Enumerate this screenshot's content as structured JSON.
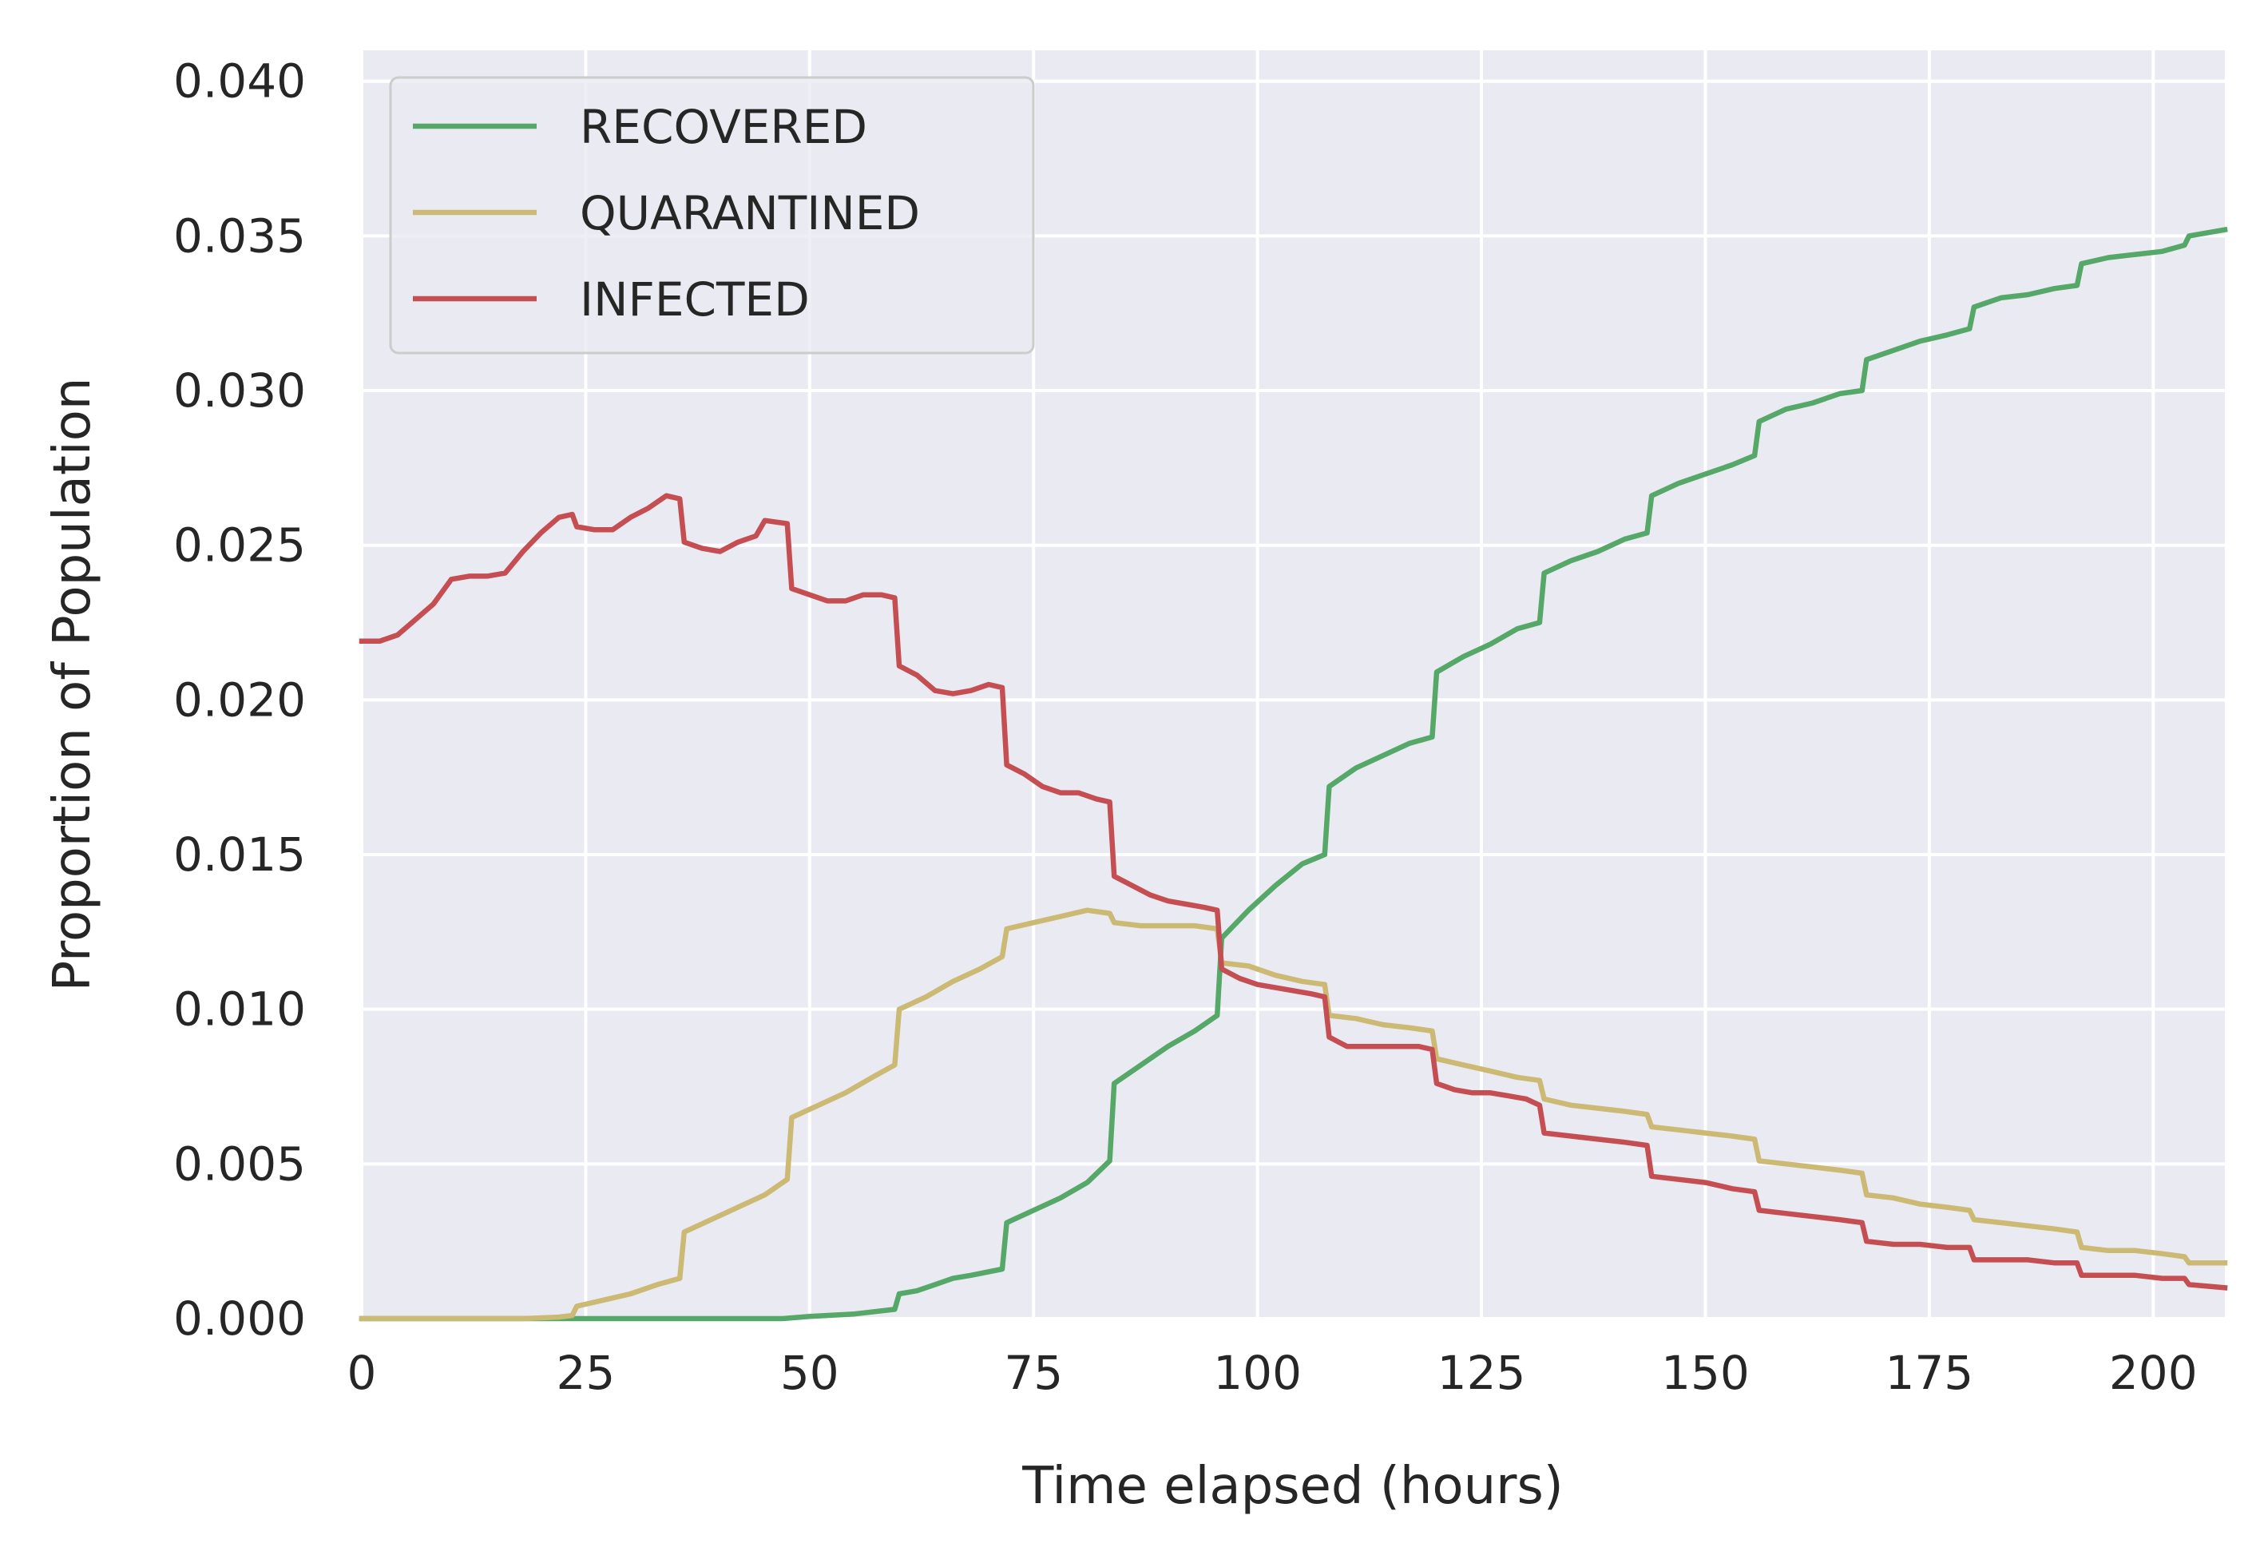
{
  "chart_data": {
    "type": "line",
    "xlabel": "Time elapsed (hours)",
    "ylabel": "Proportion of Population",
    "xlim": [
      0,
      208
    ],
    "ylim": [
      0,
      0.041
    ],
    "xticks": [
      0,
      25,
      50,
      75,
      100,
      125,
      150,
      175,
      200
    ],
    "xtick_labels": [
      "0",
      "25",
      "50",
      "75",
      "100",
      "125",
      "150",
      "175",
      "200"
    ],
    "yticks": [
      0,
      0.005,
      0.01,
      0.015,
      0.02,
      0.025,
      0.03,
      0.035,
      0.04
    ],
    "ytick_labels": [
      "0.000",
      "0.005",
      "0.010",
      "0.015",
      "0.020",
      "0.025",
      "0.030",
      "0.035",
      "0.040"
    ],
    "grid": true,
    "legend_position": "top-left",
    "background_color": "#eaeaf2",
    "series": [
      {
        "name": "RECOVERED",
        "color": "#55a868",
        "points": [
          [
            0,
            0
          ],
          [
            47,
            0
          ],
          [
            50,
            7e-05
          ],
          [
            55,
            0.00015
          ],
          [
            59.5,
            0.0003
          ],
          [
            60,
            0.0008
          ],
          [
            62,
            0.0009
          ],
          [
            64,
            0.0011
          ],
          [
            66,
            0.0013
          ],
          [
            68,
            0.0014
          ],
          [
            71.5,
            0.0016
          ],
          [
            72,
            0.0031
          ],
          [
            75,
            0.0035
          ],
          [
            78,
            0.0039
          ],
          [
            81,
            0.0044
          ],
          [
            83.5,
            0.0051
          ],
          [
            84,
            0.0076
          ],
          [
            87,
            0.0082
          ],
          [
            90,
            0.0088
          ],
          [
            93,
            0.0093
          ],
          [
            95.5,
            0.0098
          ],
          [
            96,
            0.0123
          ],
          [
            99,
            0.0132
          ],
          [
            102,
            0.014
          ],
          [
            105,
            0.0147
          ],
          [
            107.5,
            0.015
          ],
          [
            108,
            0.0172
          ],
          [
            111,
            0.0178
          ],
          [
            114,
            0.0182
          ],
          [
            117,
            0.0186
          ],
          [
            119.5,
            0.0188
          ],
          [
            120,
            0.0209
          ],
          [
            123,
            0.0214
          ],
          [
            126,
            0.0218
          ],
          [
            129,
            0.0223
          ],
          [
            131.5,
            0.0225
          ],
          [
            132,
            0.0241
          ],
          [
            135,
            0.0245
          ],
          [
            138,
            0.0248
          ],
          [
            141,
            0.0252
          ],
          [
            143.5,
            0.0254
          ],
          [
            144,
            0.0266
          ],
          [
            147,
            0.027
          ],
          [
            150,
            0.0273
          ],
          [
            153,
            0.0276
          ],
          [
            155.5,
            0.0279
          ],
          [
            156,
            0.029
          ],
          [
            159,
            0.0294
          ],
          [
            162,
            0.0296
          ],
          [
            165,
            0.0299
          ],
          [
            167.5,
            0.03
          ],
          [
            168,
            0.031
          ],
          [
            171,
            0.0313
          ],
          [
            174,
            0.0316
          ],
          [
            177,
            0.0318
          ],
          [
            179.5,
            0.032
          ],
          [
            180,
            0.0327
          ],
          [
            183,
            0.033
          ],
          [
            186,
            0.0331
          ],
          [
            189,
            0.0333
          ],
          [
            191.5,
            0.0334
          ],
          [
            192,
            0.0341
          ],
          [
            195,
            0.0343
          ],
          [
            198,
            0.0344
          ],
          [
            201,
            0.0345
          ],
          [
            203.5,
            0.0347
          ],
          [
            204,
            0.035
          ],
          [
            208,
            0.0352
          ]
        ]
      },
      {
        "name": "QUARANTINED",
        "color": "#ccb974",
        "points": [
          [
            0,
            0
          ],
          [
            18,
            0
          ],
          [
            22,
            5e-05
          ],
          [
            23.5,
            0.0001
          ],
          [
            24,
            0.0004
          ],
          [
            27,
            0.0006
          ],
          [
            30,
            0.0008
          ],
          [
            33,
            0.0011
          ],
          [
            35.5,
            0.0013
          ],
          [
            36,
            0.0028
          ],
          [
            39,
            0.0032
          ],
          [
            42,
            0.0036
          ],
          [
            45,
            0.004
          ],
          [
            47.5,
            0.0045
          ],
          [
            48,
            0.0065
          ],
          [
            51,
            0.0069
          ],
          [
            54,
            0.0073
          ],
          [
            57,
            0.0078
          ],
          [
            59.5,
            0.0082
          ],
          [
            60,
            0.01
          ],
          [
            63,
            0.0104
          ],
          [
            66,
            0.0109
          ],
          [
            69,
            0.0113
          ],
          [
            71.5,
            0.0117
          ],
          [
            72,
            0.0126
          ],
          [
            75,
            0.0128
          ],
          [
            78,
            0.013
          ],
          [
            81,
            0.0132
          ],
          [
            83.5,
            0.0131
          ],
          [
            84,
            0.0128
          ],
          [
            87,
            0.0127
          ],
          [
            90,
            0.0127
          ],
          [
            93,
            0.0127
          ],
          [
            95.5,
            0.0126
          ],
          [
            96,
            0.0115
          ],
          [
            99,
            0.0114
          ],
          [
            102,
            0.0111
          ],
          [
            105,
            0.0109
          ],
          [
            107.5,
            0.0108
          ],
          [
            108,
            0.0098
          ],
          [
            111,
            0.0097
          ],
          [
            114,
            0.0095
          ],
          [
            117,
            0.0094
          ],
          [
            119.5,
            0.0093
          ],
          [
            120,
            0.0084
          ],
          [
            123,
            0.0082
          ],
          [
            126,
            0.008
          ],
          [
            129,
            0.0078
          ],
          [
            131.5,
            0.0077
          ],
          [
            132,
            0.0071
          ],
          [
            135,
            0.0069
          ],
          [
            138,
            0.0068
          ],
          [
            141,
            0.0067
          ],
          [
            143.5,
            0.0066
          ],
          [
            144,
            0.0062
          ],
          [
            147,
            0.0061
          ],
          [
            150,
            0.006
          ],
          [
            153,
            0.0059
          ],
          [
            155.5,
            0.0058
          ],
          [
            156,
            0.0051
          ],
          [
            159,
            0.005
          ],
          [
            162,
            0.0049
          ],
          [
            165,
            0.0048
          ],
          [
            167.5,
            0.0047
          ],
          [
            168,
            0.004
          ],
          [
            171,
            0.0039
          ],
          [
            174,
            0.0037
          ],
          [
            177,
            0.0036
          ],
          [
            179.5,
            0.0035
          ],
          [
            180,
            0.0032
          ],
          [
            183,
            0.0031
          ],
          [
            186,
            0.003
          ],
          [
            189,
            0.0029
          ],
          [
            191.5,
            0.0028
          ],
          [
            192,
            0.0023
          ],
          [
            195,
            0.0022
          ],
          [
            198,
            0.0022
          ],
          [
            201,
            0.0021
          ],
          [
            203.5,
            0.002
          ],
          [
            204,
            0.0018
          ],
          [
            208,
            0.0018
          ]
        ]
      },
      {
        "name": "INFECTED",
        "color": "#c44e52",
        "points": [
          [
            0,
            0.0219
          ],
          [
            2,
            0.0219
          ],
          [
            4,
            0.0221
          ],
          [
            6,
            0.0226
          ],
          [
            8,
            0.0231
          ],
          [
            10,
            0.0239
          ],
          [
            12,
            0.024
          ],
          [
            14,
            0.024
          ],
          [
            16,
            0.0241
          ],
          [
            18,
            0.0248
          ],
          [
            20,
            0.0254
          ],
          [
            22,
            0.0259
          ],
          [
            23.5,
            0.026
          ],
          [
            24,
            0.0256
          ],
          [
            26,
            0.0255
          ],
          [
            28,
            0.0255
          ],
          [
            30,
            0.0259
          ],
          [
            32,
            0.0262
          ],
          [
            34,
            0.0266
          ],
          [
            35.5,
            0.0265
          ],
          [
            36,
            0.0251
          ],
          [
            38,
            0.0249
          ],
          [
            40,
            0.0248
          ],
          [
            42,
            0.0251
          ],
          [
            44,
            0.0253
          ],
          [
            45,
            0.0258
          ],
          [
            47.5,
            0.0257
          ],
          [
            48,
            0.0236
          ],
          [
            50,
            0.0234
          ],
          [
            52,
            0.0232
          ],
          [
            54,
            0.0232
          ],
          [
            56,
            0.0234
          ],
          [
            58,
            0.0234
          ],
          [
            59.5,
            0.0233
          ],
          [
            60,
            0.0211
          ],
          [
            62,
            0.0208
          ],
          [
            64,
            0.0203
          ],
          [
            66,
            0.0202
          ],
          [
            68,
            0.0203
          ],
          [
            70,
            0.0205
          ],
          [
            71.5,
            0.0204
          ],
          [
            72,
            0.0179
          ],
          [
            74,
            0.0176
          ],
          [
            76,
            0.0172
          ],
          [
            78,
            0.017
          ],
          [
            80,
            0.017
          ],
          [
            82,
            0.0168
          ],
          [
            83.5,
            0.0167
          ],
          [
            84,
            0.0143
          ],
          [
            86,
            0.014
          ],
          [
            88,
            0.0137
          ],
          [
            90,
            0.0135
          ],
          [
            92,
            0.0134
          ],
          [
            94,
            0.0133
          ],
          [
            95.5,
            0.0132
          ],
          [
            96,
            0.0113
          ],
          [
            98,
            0.011
          ],
          [
            100,
            0.0108
          ],
          [
            102,
            0.0107
          ],
          [
            104,
            0.0106
          ],
          [
            106,
            0.0105
          ],
          [
            107.5,
            0.0104
          ],
          [
            108,
            0.0091
          ],
          [
            110,
            0.0088
          ],
          [
            112,
            0.0088
          ],
          [
            114,
            0.0088
          ],
          [
            116,
            0.0088
          ],
          [
            118,
            0.0088
          ],
          [
            119.5,
            0.0087
          ],
          [
            120,
            0.0076
          ],
          [
            122,
            0.0074
          ],
          [
            124,
            0.0073
          ],
          [
            126,
            0.0073
          ],
          [
            128,
            0.0072
          ],
          [
            130,
            0.0071
          ],
          [
            131.5,
            0.0069
          ],
          [
            132,
            0.006
          ],
          [
            135,
            0.0059
          ],
          [
            138,
            0.0058
          ],
          [
            141,
            0.0057
          ],
          [
            143.5,
            0.0056
          ],
          [
            144,
            0.0046
          ],
          [
            147,
            0.0045
          ],
          [
            150,
            0.0044
          ],
          [
            153,
            0.0042
          ],
          [
            155.5,
            0.0041
          ],
          [
            156,
            0.0035
          ],
          [
            159,
            0.0034
          ],
          [
            162,
            0.0033
          ],
          [
            165,
            0.0032
          ],
          [
            167.5,
            0.0031
          ],
          [
            168,
            0.0025
          ],
          [
            171,
            0.0024
          ],
          [
            174,
            0.0024
          ],
          [
            177,
            0.0023
          ],
          [
            179.5,
            0.0023
          ],
          [
            180,
            0.0019
          ],
          [
            183,
            0.0019
          ],
          [
            186,
            0.0019
          ],
          [
            189,
            0.0018
          ],
          [
            191.5,
            0.0018
          ],
          [
            192,
            0.0014
          ],
          [
            195,
            0.0014
          ],
          [
            198,
            0.0014
          ],
          [
            201,
            0.0013
          ],
          [
            203.5,
            0.0013
          ],
          [
            204,
            0.0011
          ],
          [
            208,
            0.001
          ]
        ]
      }
    ]
  }
}
